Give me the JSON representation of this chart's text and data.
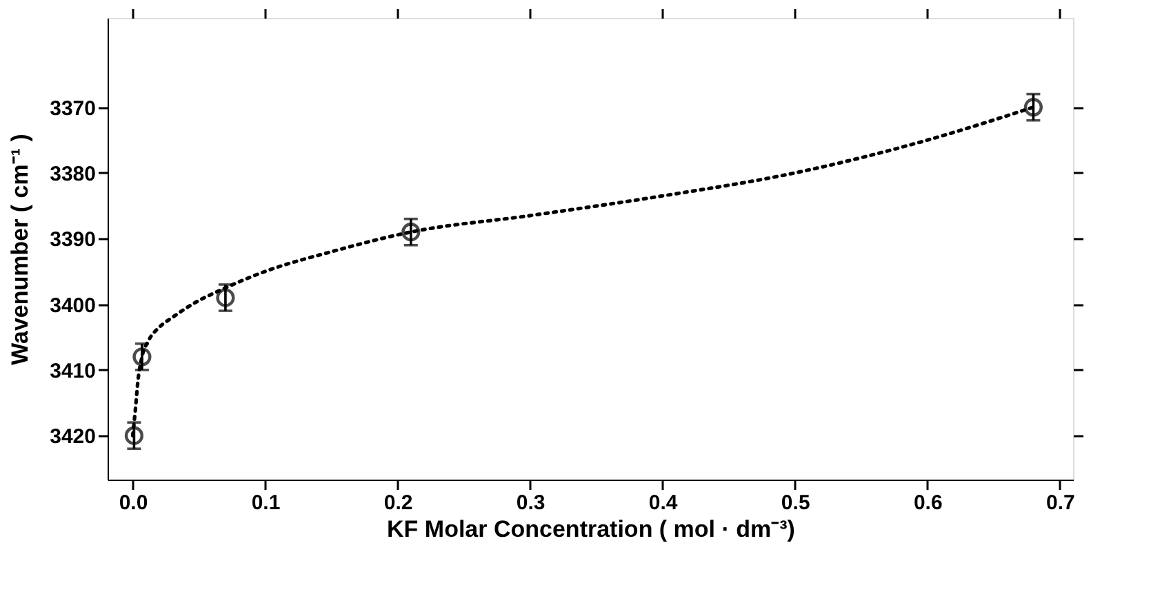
{
  "chart_data": {
    "type": "scatter",
    "xlabel": "KF Molar Concentration  ( mol · dm⁻³)",
    "ylabel": "Wavenumber ( cm⁻¹ )",
    "xlim": [
      -0.019,
      0.71
    ],
    "xticks": [
      {
        "value": 0,
        "label": "0.0"
      },
      0.1,
      0.2,
      0.3,
      0.4,
      0.5,
      0.6,
      0.7
    ],
    "ylim": [
      3426.7,
      3356.4
    ],
    "yticks": [
      3370,
      3380,
      3390,
      3400,
      3410,
      3420
    ],
    "grid": false,
    "series": [
      {
        "color": "#000000",
        "marker": "circle",
        "x": [
          0.001,
          0.007,
          0.07,
          0.21,
          0.68
        ],
        "values": [
          3420,
          3408,
          3399,
          3389,
          3370
        ],
        "errors": [
          2,
          2,
          2,
          2,
          2
        ]
      },
      {
        "type": "line",
        "color": "#000000",
        "marker": "none",
        "line_style": "dotted",
        "x": [
          0.0,
          0.002,
          0.004,
          0.007,
          0.012,
          0.02,
          0.03,
          0.045,
          0.07,
          0.1,
          0.15,
          0.21,
          0.3,
          0.4,
          0.5,
          0.6,
          0.68
        ],
        "values": [
          3420,
          3416,
          3411.5,
          3408,
          3405.5,
          3403.5,
          3402,
          3400,
          3397.5,
          3395,
          3392,
          3389,
          3386.5,
          3383.5,
          3380,
          3375,
          3370
        ]
      }
    ]
  }
}
